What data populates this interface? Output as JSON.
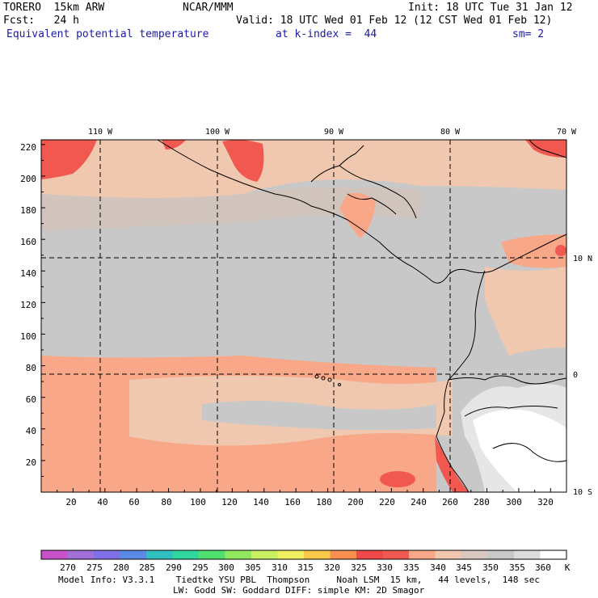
{
  "header": {
    "model": "TORERO  15km ARW",
    "center": "NCAR/MMM",
    "init": "Init: 18 UTC Tue 31 Jan 12",
    "fcst": "Fcst:   24 h",
    "valid": "Valid: 18 UTC Wed 01 Feb 12 (12 CST Wed 01 Feb 12)",
    "field": "Equivalent potential temperature",
    "level": "at k-index =  44",
    "smoothing": "sm= 2"
  },
  "map": {
    "lon_labels": [
      "110 W",
      "100 W",
      "90 W",
      "80 W",
      "70 W"
    ],
    "lat_labels": [
      "10 N",
      "0",
      "10 S"
    ],
    "x_ticks": [
      "20",
      "40",
      "60",
      "80",
      "100",
      "120",
      "140",
      "160",
      "180",
      "200",
      "220",
      "240",
      "260",
      "280",
      "300",
      "320"
    ],
    "y_ticks": [
      "20",
      "40",
      "60",
      "80",
      "100",
      "120",
      "140",
      "160",
      "180",
      "200",
      "220"
    ]
  },
  "colorbar": {
    "labels": [
      "270",
      "275",
      "280",
      "285",
      "290",
      "295",
      "300",
      "305",
      "310",
      "315",
      "320",
      "325",
      "330",
      "335",
      "340",
      "345",
      "350",
      "355",
      "360"
    ],
    "unit": "K",
    "colors": [
      "#c850c8",
      "#a070d8",
      "#8070e8",
      "#5a8ae6",
      "#30c0c0",
      "#30d8a0",
      "#50e070",
      "#90e860",
      "#c8f060",
      "#f0f060",
      "#f8c848",
      "#f89050",
      "#f04848",
      "#f05850",
      "#f8a888",
      "#f0c8b0",
      "#d8c8c0",
      "#c8c8c8",
      "#dcdcdc",
      "#ffffff"
    ]
  },
  "footer": {
    "line1": "Model Info: V3.3.1    Tiedtke YSU PBL  Thompson     Noah LSM  15 km,   44 levels,  148 sec",
    "line2": "LW: Godd SW: Goddard DIFF: simple KM: 2D Smagor"
  }
}
